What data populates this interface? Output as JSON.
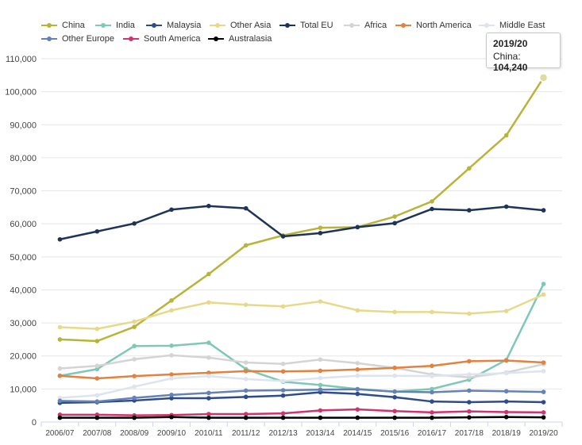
{
  "chart_data": {
    "type": "line",
    "title": "",
    "xlabel": "",
    "ylabel": "",
    "ylim": [
      0,
      110000
    ],
    "yticks": [
      "0",
      "10,000",
      "20,000",
      "30,000",
      "40,000",
      "50,000",
      "60,000",
      "70,000",
      "80,000",
      "90,000",
      "100,000",
      "110,000"
    ],
    "categories": [
      "2006/07",
      "2007/08",
      "2008/09",
      "2009/10",
      "2010/11",
      "2011/12",
      "2012/13",
      "2013/14",
      "2014/15",
      "2015/16",
      "2016/17",
      "2017/18",
      "2018/19",
      "2019/20"
    ],
    "series": [
      {
        "name": "China",
        "color": "#b8b43a",
        "values": [
          25000,
          24500,
          28800,
          36800,
          44800,
          53500,
          56500,
          58800,
          59000,
          62200,
          66800,
          76800,
          86800,
          104240
        ]
      },
      {
        "name": "India",
        "color": "#7ec8b8",
        "values": [
          14000,
          16000,
          23000,
          23100,
          24000,
          16000,
          12200,
          11200,
          10000,
          9200,
          10000,
          12800,
          18800,
          41800
        ]
      },
      {
        "name": "Malaysia",
        "color": "#2e4b8c",
        "values": [
          5800,
          6000,
          6500,
          7200,
          7200,
          7600,
          8000,
          9000,
          8500,
          7500,
          6200,
          6000,
          6200,
          6000
        ]
      },
      {
        "name": "Other Asia",
        "color": "#e8d98a",
        "values": [
          28700,
          28200,
          30400,
          33800,
          36200,
          35500,
          35000,
          36500,
          33800,
          33300,
          33300,
          32800,
          33600,
          38600
        ]
      },
      {
        "name": "Total EU",
        "color": "#1e3358",
        "values": [
          55300,
          57700,
          60100,
          64300,
          65400,
          64700,
          56200,
          57200,
          59000,
          60200,
          64500,
          64100,
          65200,
          64100
        ]
      },
      {
        "name": "Africa",
        "color": "#d4d4d4",
        "values": [
          16200,
          17000,
          19000,
          20200,
          19500,
          18000,
          17600,
          18900,
          17800,
          16400,
          14400,
          13500,
          15000,
          17500
        ]
      },
      {
        "name": "North America",
        "color": "#e3813e",
        "values": [
          14000,
          13200,
          13900,
          14400,
          14900,
          15400,
          15300,
          15500,
          15900,
          16400,
          17000,
          18400,
          18600,
          18000
        ]
      },
      {
        "name": "Middle East",
        "color": "#dde4ef",
        "values": [
          7300,
          8100,
          10700,
          13200,
          13900,
          13000,
          12400,
          13300,
          14000,
          14000,
          13900,
          14400,
          14800,
          15400
        ]
      },
      {
        "name": "Other Europe",
        "color": "#6482b4",
        "values": [
          6400,
          6200,
          7300,
          8200,
          8800,
          9500,
          9600,
          9800,
          9900,
          9200,
          9000,
          9500,
          9300,
          9100
        ]
      },
      {
        "name": "South America",
        "color": "#d0336e",
        "values": [
          2200,
          2200,
          2000,
          2100,
          2400,
          2400,
          2600,
          3500,
          3800,
          3300,
          2900,
          3200,
          3000,
          2900
        ]
      },
      {
        "name": "Australasia",
        "color": "#000000",
        "values": [
          1300,
          1300,
          1300,
          1500,
          1300,
          1300,
          1300,
          1300,
          1300,
          1300,
          1300,
          1400,
          1500,
          1400
        ]
      }
    ],
    "tooltip": {
      "title": "2019/20",
      "series": "China",
      "label": "China:",
      "value": "104,240"
    }
  }
}
